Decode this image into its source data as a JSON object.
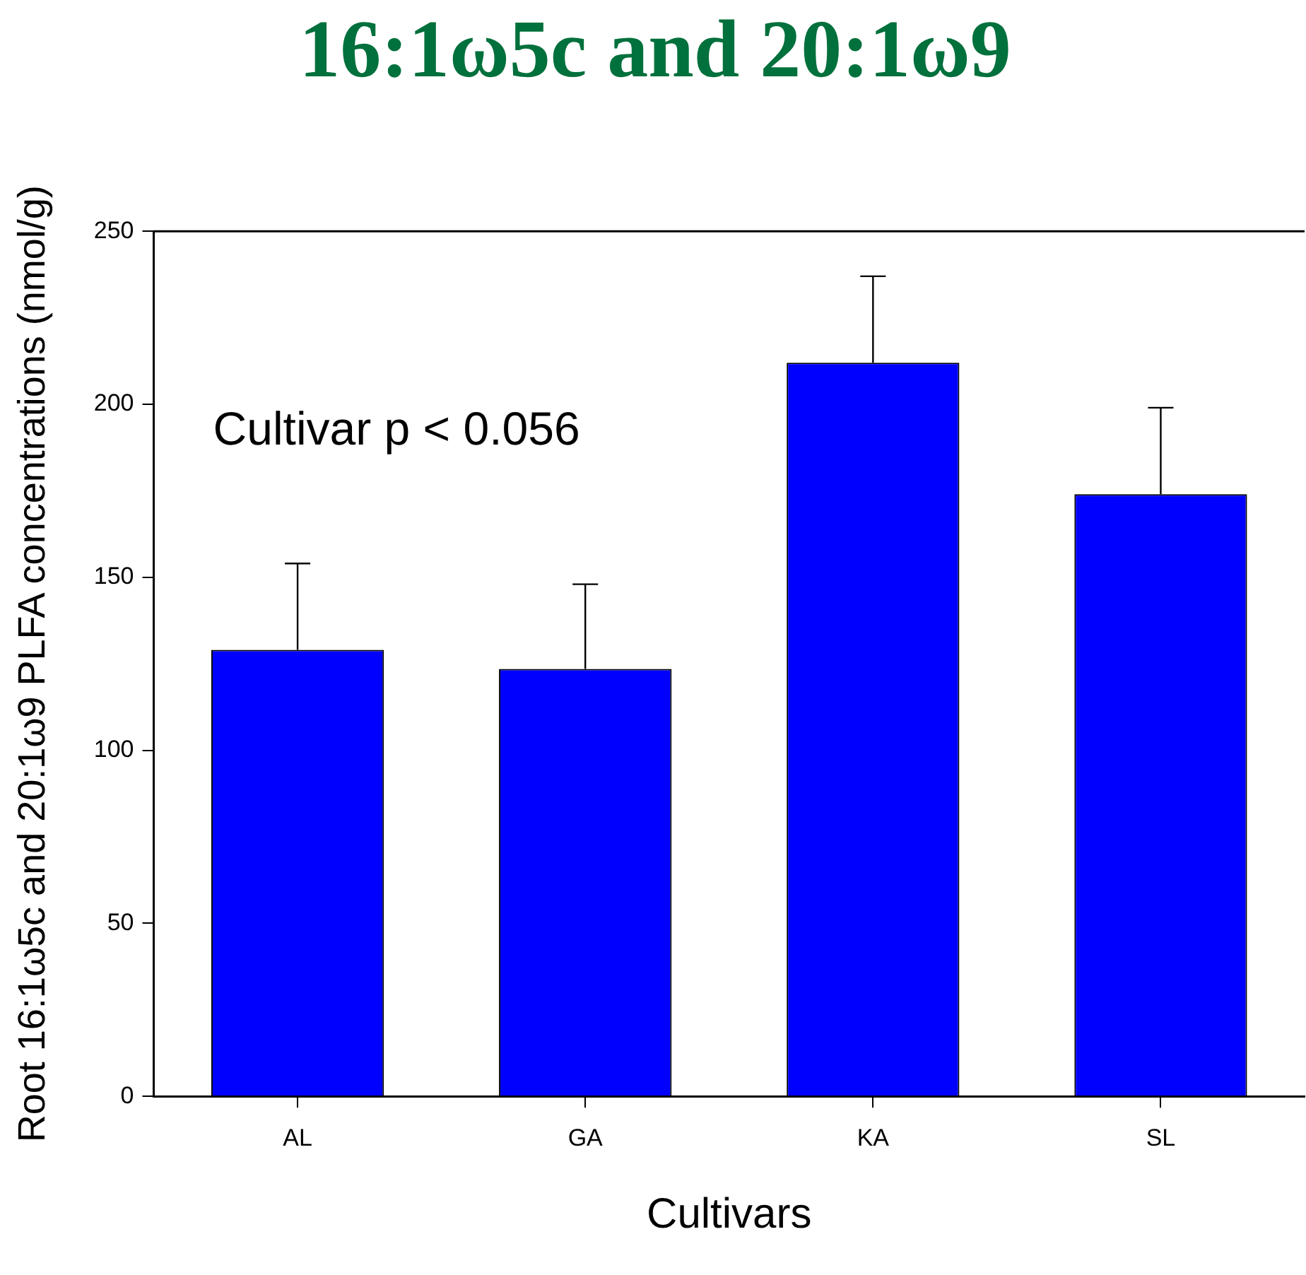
{
  "chart_data": {
    "type": "bar",
    "title": "16:1ω5c and 20:1ω9",
    "xlabel": "Cultivars",
    "ylabel": "Root 16:1ω5c and 20:1ω9 PLFA concentrations (nmol/g)",
    "categories": [
      "AL",
      "GA",
      "KA",
      "SL"
    ],
    "values": [
      129,
      123.5,
      212,
      174
    ],
    "errors": [
      25,
      24.5,
      25,
      25
    ],
    "color": "#0000ff",
    "ylim": [
      0,
      250
    ],
    "yticks": [
      0,
      50,
      100,
      150,
      200,
      250
    ],
    "grid": false,
    "legend": false,
    "annotations": [
      "Cultivar p < 0.056"
    ]
  }
}
